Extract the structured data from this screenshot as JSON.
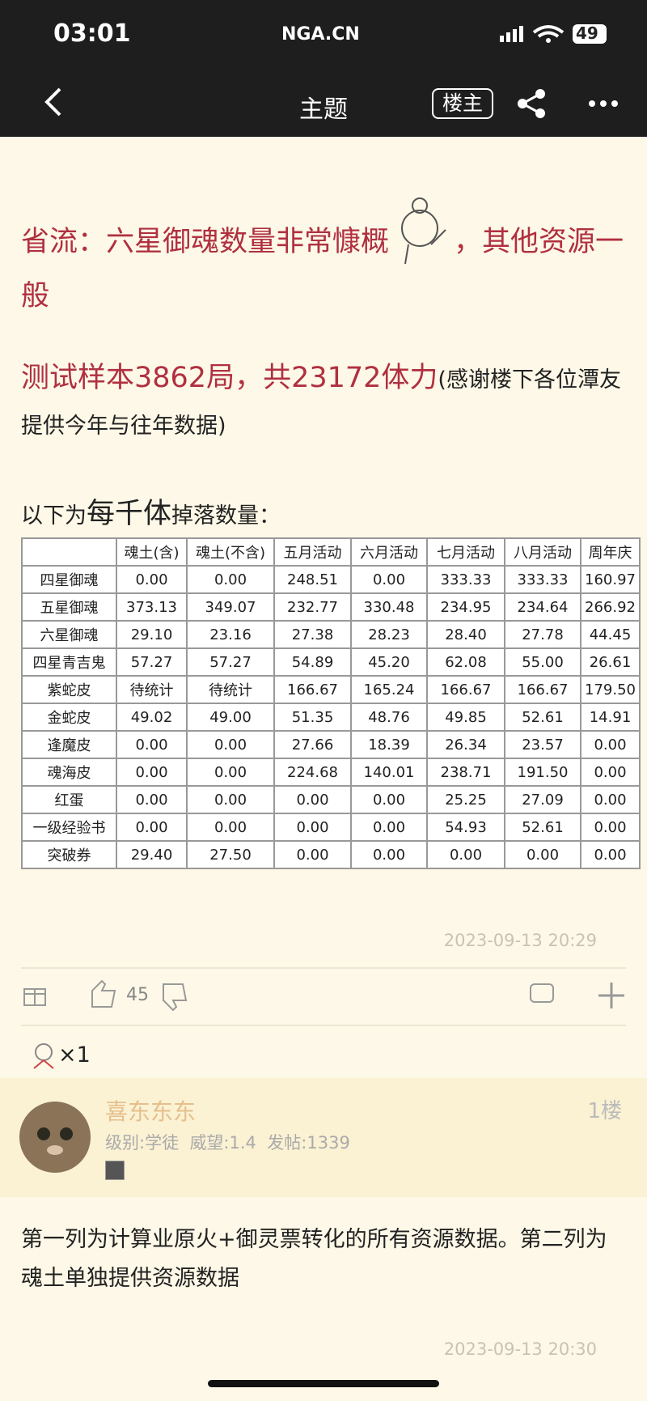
{
  "status_bar": {
    "time": "03:01",
    "logo": "NGA.CN",
    "battery": "49"
  },
  "nav": {
    "title": "主题",
    "owner_button": "楼主"
  },
  "post": {
    "title_before": "省流：六星御魂数量非常慷概",
    "title_after": "，其他资源一般",
    "sample_main": "测试样本3862局，共23172体力",
    "sample_note": "(感谢楼下各位潭友提供今年与往年数据)",
    "intro_before": "以下为",
    "intro_big": "每千体",
    "intro_after": "掉落数量：",
    "table": {
      "header": [
        "",
        "魂土(含)",
        "魂土(不含)",
        "五月活动",
        "六月活动",
        "七月活动",
        "八月活动",
        "周年庆"
      ],
      "rows": [
        [
          "四星御魂",
          "0.00",
          "0.00",
          "248.51",
          "0.00",
          "333.33",
          "333.33",
          "160.97"
        ],
        [
          "五星御魂",
          "373.13",
          "349.07",
          "232.77",
          "330.48",
          "234.95",
          "234.64",
          "266.92"
        ],
        [
          "六星御魂",
          "29.10",
          "23.16",
          "27.38",
          "28.23",
          "28.40",
          "27.78",
          "44.45"
        ],
        [
          "四星青吉鬼",
          "57.27",
          "57.27",
          "54.89",
          "45.20",
          "62.08",
          "55.00",
          "26.61"
        ],
        [
          "紫蛇皮",
          "待统计",
          "待统计",
          "166.67",
          "165.24",
          "166.67",
          "166.67",
          "179.50"
        ],
        [
          "金蛇皮",
          "49.02",
          "49.00",
          "51.35",
          "48.76",
          "49.85",
          "52.61",
          "14.91"
        ],
        [
          "逢魔皮",
          "0.00",
          "0.00",
          "27.66",
          "18.39",
          "26.34",
          "23.57",
          "0.00"
        ],
        [
          "魂海皮",
          "0.00",
          "0.00",
          "224.68",
          "140.01",
          "238.71",
          "191.50",
          "0.00"
        ],
        [
          "红蛋",
          "0.00",
          "0.00",
          "0.00",
          "0.00",
          "25.25",
          "27.09",
          "0.00"
        ],
        [
          "一级经验书",
          "0.00",
          "0.00",
          "0.00",
          "0.00",
          "54.93",
          "52.61",
          "0.00"
        ],
        [
          "突破券",
          "29.40",
          "27.50",
          "0.00",
          "0.00",
          "0.00",
          "0.00",
          "0.00"
        ]
      ]
    },
    "date": "2023-09-13 20:29",
    "likes": "45",
    "reaction_count": "×1"
  },
  "reply": {
    "user": "喜东东东",
    "floor": "1楼",
    "level": "级别:学徒",
    "prestige": "威望:1.4",
    "posts": "发帖:1339",
    "text": "第一列为计算业原火+御灵票转化的所有资源数据。第二列为魂土单独提供资源数据",
    "date": "2023-09-13 20:30"
  }
}
